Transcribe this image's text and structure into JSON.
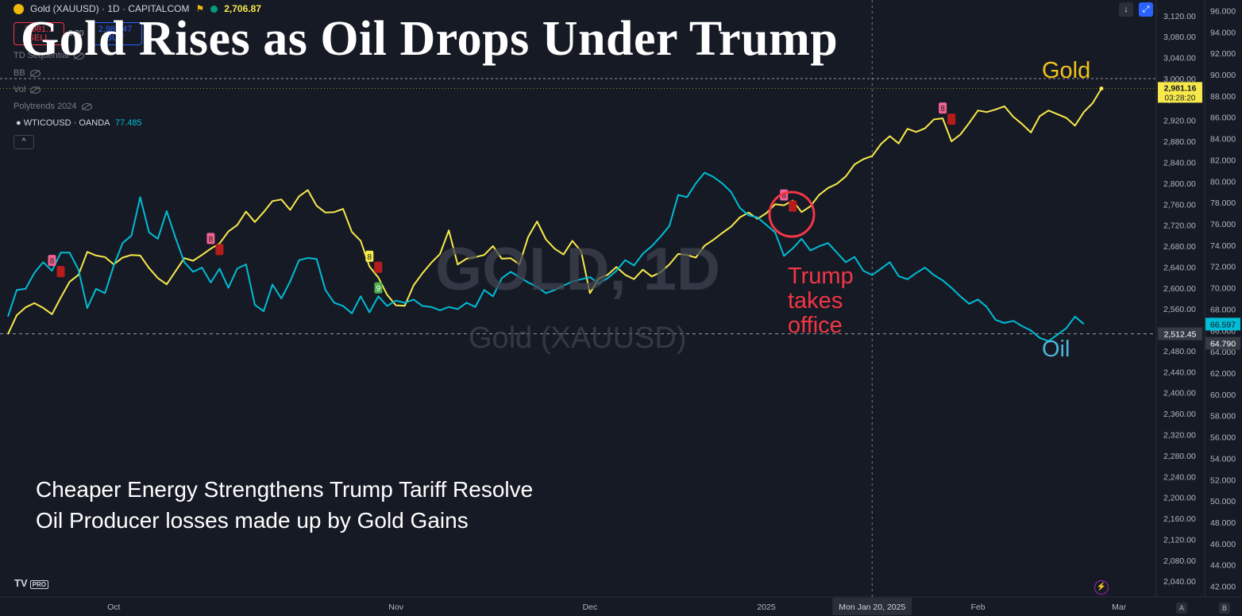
{
  "header": {
    "symbol": "Gold (XAUUSD) · 1D · CAPITALCOM",
    "price": "2,706.87",
    "sell_price": "2,981.1",
    "sell_label": "SELL",
    "spread": "0.30",
    "buy_price": "2,981.47",
    "buy_label": "BUY"
  },
  "indicators": {
    "td": "TD Sequential",
    "bb": "BB",
    "vol": "Vol",
    "poly": "Polytrends 2024",
    "wti_label": "WTICOUSD · OANDA",
    "wti_value": "77.485",
    "collapse": "^"
  },
  "headline": "Gold Rises as Oil Drops Under Trump",
  "subtitle": {
    "line1": "Cheaper Energy Strengthens Trump Tariff Resolve",
    "line2": "Oil Producer losses made up by Gold Gains"
  },
  "watermark": {
    "big": "GOLD, 1D",
    "small": "Gold (XAUUSD)"
  },
  "annotations": {
    "gold": "Gold",
    "oil": "Oil",
    "trump1": "Trump",
    "trump2": "takes",
    "trump3": "office"
  },
  "branding": {
    "logo": "TV",
    "pro": "PRO"
  },
  "buttons": {
    "down": "↓",
    "top": "⤢",
    "a": "A",
    "b": "B"
  },
  "chart_data": {
    "type": "line",
    "title": "Gold Rises as Oil Drops Under Trump",
    "colors": {
      "gold": "#f7e94b",
      "oil": "#00bcd4",
      "background": "#161a25",
      "annotation": "#f23645"
    },
    "x_tick_labels": [
      "Oct",
      "Nov",
      "Dec",
      "2025",
      "Mon Jan 20, 2025",
      "Feb",
      "Mar"
    ],
    "gold_axis": {
      "ylim": [
        2010,
        3150
      ],
      "ticks": [
        "3,120.00",
        "3,080.00",
        "3,040.00",
        "3,000.00",
        "2,960.00",
        "2,920.00",
        "2,880.00",
        "2,840.00",
        "2,800.00",
        "2,760.00",
        "2,720.00",
        "2,680.00",
        "2,640.00",
        "2,600.00",
        "2,560.00",
        "2,520.00",
        "2,480.00",
        "2,440.00",
        "2,400.00",
        "2,360.00",
        "2,320.00",
        "2,280.00",
        "2,240.00",
        "2,200.00",
        "2,160.00",
        "2,120.00",
        "2,080.00",
        "2,040.00"
      ],
      "tick_values": [
        3120,
        3080,
        3040,
        3000,
        2960,
        2920,
        2880,
        2840,
        2800,
        2760,
        2720,
        2680,
        2640,
        2600,
        2560,
        2520,
        2480,
        2440,
        2400,
        2360,
        2320,
        2280,
        2240,
        2200,
        2160,
        2120,
        2080,
        2040
      ],
      "last_label": "2,981.16",
      "last_value": 2981.16,
      "countdown": "03:28:20",
      "ref_label": "2,512.45",
      "ref_value": 2512.45
    },
    "oil_axis": {
      "ylim": [
        41,
        97
      ],
      "ticks": [
        "96.000",
        "94.000",
        "92.000",
        "90.000",
        "88.000",
        "86.000",
        "84.000",
        "82.000",
        "80.000",
        "78.000",
        "76.000",
        "74.000",
        "72.000",
        "70.000",
        "68.000",
        "66.000",
        "64.000",
        "62.000",
        "60.000",
        "58.000",
        "56.000",
        "54.000",
        "52.000",
        "50.000",
        "48.000",
        "46.000",
        "44.000",
        "42.000"
      ],
      "tick_values": [
        96,
        94,
        92,
        90,
        88,
        86,
        84,
        82,
        80,
        78,
        76,
        74,
        72,
        70,
        68,
        66,
        64,
        62,
        60,
        58,
        56,
        54,
        52,
        50,
        48,
        46,
        44,
        42
      ],
      "last_label": "66.597",
      "last_value": 66.597,
      "ref_label": "64.790",
      "ref_value": 64.79
    },
    "series": [
      {
        "name": "Gold",
        "axis": "gold",
        "values": [
          2512,
          2548,
          2563,
          2571,
          2562,
          2550,
          2582,
          2612,
          2625,
          2669,
          2662,
          2659,
          2645,
          2658,
          2663,
          2662,
          2638,
          2619,
          2607,
          2632,
          2657,
          2652,
          2663,
          2675,
          2685,
          2708,
          2720,
          2746,
          2726,
          2745,
          2766,
          2769,
          2749,
          2775,
          2787,
          2757,
          2744,
          2745,
          2751,
          2707,
          2690,
          2641,
          2620,
          2587,
          2567,
          2566,
          2605,
          2628,
          2648,
          2665,
          2710,
          2645,
          2656,
          2659,
          2663,
          2680,
          2656,
          2657,
          2645,
          2698,
          2727,
          2693,
          2675,
          2664,
          2690,
          2670,
          2590,
          2618,
          2625,
          2640,
          2625,
          2617,
          2635,
          2622,
          2630,
          2645,
          2665,
          2663,
          2658,
          2681,
          2692,
          2705,
          2717,
          2735,
          2744,
          2732,
          2743,
          2760,
          2758,
          2767,
          2745,
          2756,
          2778,
          2791,
          2799,
          2813,
          2836,
          2846,
          2852,
          2875,
          2890,
          2876,
          2904,
          2898,
          2905,
          2922,
          2924,
          2880,
          2893,
          2915,
          2939,
          2936,
          2941,
          2947,
          2927,
          2913,
          2897,
          2928,
          2939,
          2932,
          2925,
          2910,
          2936,
          2953,
          2981
        ]
      },
      {
        "name": "Oil",
        "axis": "oil",
        "values": [
          67.3,
          69.8,
          69.9,
          71.4,
          72.4,
          71.6,
          73.3,
          73.3,
          71.7,
          68.1,
          69.9,
          69.5,
          72.1,
          74.2,
          74.9,
          78.5,
          75.2,
          74.6,
          77.2,
          74.7,
          72.4,
          71.5,
          71.9,
          70.5,
          71.8,
          70.0,
          71.8,
          72.2,
          68.4,
          67.8,
          70.3,
          69.0,
          70.6,
          72.6,
          72.8,
          72.7,
          69.8,
          68.6,
          68.3,
          67.6,
          69.2,
          67.7,
          69.2,
          68.3,
          68.8,
          68.6,
          68.9,
          68.3,
          68.2,
          67.9,
          68.2,
          68.0,
          68.6,
          68.2,
          69.8,
          69.2,
          70.9,
          71.5,
          71.0,
          70.5,
          70.1,
          69.5,
          69.8,
          70.2,
          70.6,
          70.8,
          71.0,
          70.4,
          70.9,
          71.6,
          72.6,
          72.1,
          73.2,
          73.9,
          74.8,
          75.8,
          78.7,
          78.5,
          79.8,
          80.8,
          80.4,
          79.8,
          79.0,
          77.5,
          76.8,
          76.6,
          75.9,
          75.2,
          73.0,
          73.7,
          74.6,
          73.5,
          73.9,
          74.2,
          73.3,
          72.4,
          72.9,
          71.6,
          71.2,
          71.8,
          72.4,
          71.1,
          70.8,
          71.4,
          71.9,
          71.2,
          70.7,
          70.0,
          69.2,
          68.5,
          68.9,
          68.2,
          67.0,
          66.7,
          66.9,
          66.4,
          66.0,
          65.3,
          65.0,
          65.6,
          66.2,
          67.3,
          66.6
        ]
      }
    ],
    "td_markers": [
      {
        "series": "Gold",
        "label": "8",
        "index": 23
      },
      {
        "series": "Gold",
        "label": "8",
        "index": 88
      },
      {
        "series": "Gold",
        "label": "8",
        "index": 106
      },
      {
        "series": "Gold",
        "label": "8",
        "index": 41
      },
      {
        "series": "Gold",
        "label": "9",
        "index": 42
      },
      {
        "series": "Oil",
        "label": "8",
        "index": 5
      }
    ],
    "event_marker": {
      "label": "Mon Jan 20, 2025"
    }
  }
}
